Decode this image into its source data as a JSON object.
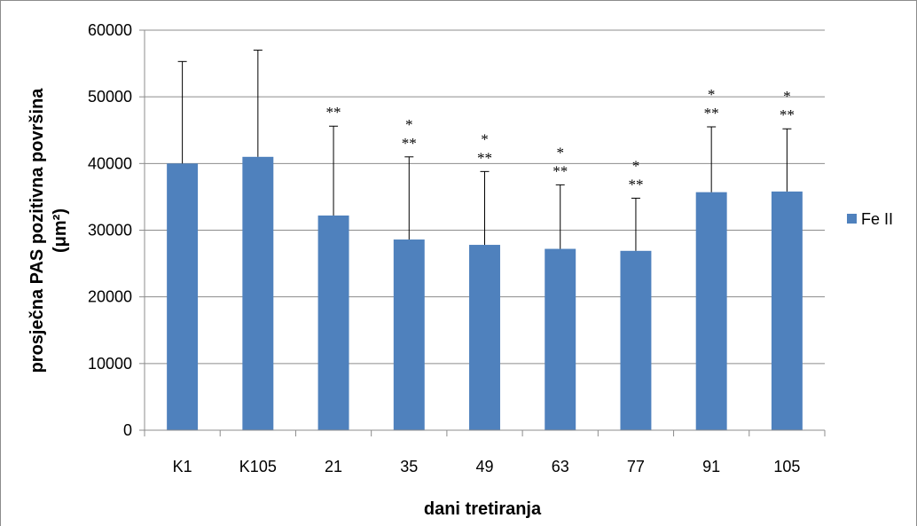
{
  "chart_data": {
    "type": "bar",
    "xlabel": "dani tretiranja",
    "ylabel_line1": "prosječna PAS pozitivna površina",
    "ylabel_line2": "(μm²)",
    "ylim": [
      0,
      60000
    ],
    "yticks": [
      0,
      10000,
      20000,
      30000,
      40000,
      50000,
      60000
    ],
    "ytick_labels": [
      "0",
      "10000",
      "20000",
      "30000",
      "40000",
      "50000",
      "60000"
    ],
    "grid": true,
    "legend_position": "right",
    "categories": [
      "K1",
      "K105",
      "21",
      "35",
      "49",
      "63",
      "77",
      "91",
      "105"
    ],
    "series": [
      {
        "name": "Fe II",
        "color": "#4f81bd",
        "values": [
          40000,
          41000,
          32200,
          28600,
          27800,
          27200,
          26900,
          35700,
          35800
        ],
        "error_upper": [
          55300,
          57000,
          45600,
          41000,
          38800,
          36800,
          34800,
          45500,
          45200
        ]
      }
    ],
    "significance": [
      [],
      [],
      [
        "**"
      ],
      [
        "*",
        "**"
      ],
      [
        "*",
        "**"
      ],
      [
        "*",
        "**"
      ],
      [
        "*",
        "**"
      ],
      [
        "*",
        "**"
      ],
      [
        "*",
        "**"
      ]
    ]
  }
}
